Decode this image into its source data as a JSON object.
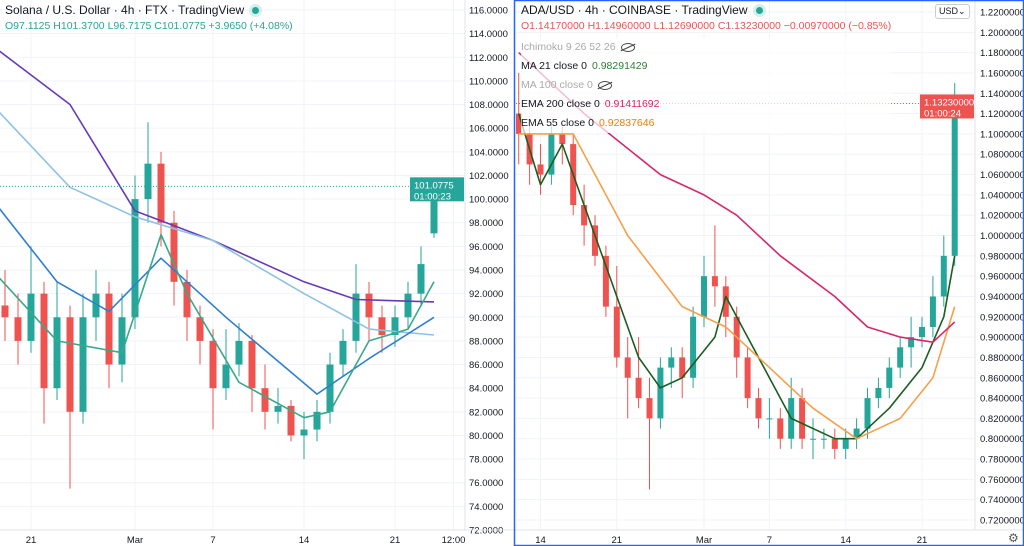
{
  "left": {
    "title": "Solana / U.S. Dollar · 4h · FTX · TradingView",
    "ohlc": {
      "o": "O97.1125",
      "h": "H101.3700",
      "l": "L96.7175",
      "c": "C101.0775",
      "chg": "+3.9650 (+4.08%)"
    },
    "last_price": "101.0775",
    "countdown": "01:00:23",
    "colors": {
      "up": "#26a69a",
      "down": "#ef5350"
    }
  },
  "right": {
    "title": "ADA/USD · 4h · COINBASE · TradingView",
    "ohlc": {
      "o": "O1.14170000",
      "h": "H1.14960000",
      "l": "L1.12690000",
      "c": "C1.13230000",
      "chg": "−0.00970000 (−0.85%)"
    },
    "indicators": [
      {
        "label": "Ichimoku 9 26 52 26",
        "value": "",
        "hidden": true,
        "color": "#999999"
      },
      {
        "label": "MA 21 close 0",
        "value": "0.98291429",
        "hidden": false,
        "color": "#2e7d32"
      },
      {
        "label": "MA 100 close 0",
        "value": "",
        "hidden": true,
        "color": "#999999"
      },
      {
        "label": "EMA 200 close 0",
        "value": "0.91411692",
        "hidden": false,
        "color": "#e91e63"
      },
      {
        "label": "EMA 55 close 0",
        "value": "0.92837646",
        "hidden": false,
        "color": "#f57c00"
      }
    ],
    "last_price": "1.13230000",
    "countdown": "01:00:24",
    "currency": "USD",
    "currency_icon": "chevron-down-icon"
  },
  "settings_icon": "gear-icon",
  "chart_data": [
    {
      "type": "candlestick",
      "title": "Solana / U.S. Dollar · 4h · FTX",
      "ylim": [
        72,
        116
      ],
      "yticks": [
        72,
        74,
        76,
        78,
        80,
        82,
        84,
        86,
        88,
        90,
        92,
        94,
        96,
        98,
        100,
        102,
        104,
        106,
        108,
        110,
        112,
        114,
        116
      ],
      "ytick_format": 4,
      "xticks": [
        {
          "date": "2022-02-21",
          "label": "21"
        },
        {
          "date": "2022-03-01",
          "label": "Mar"
        },
        {
          "date": "2022-03-07",
          "label": "7"
        },
        {
          "date": "2022-03-14",
          "label": "14"
        },
        {
          "date": "2022-03-21",
          "label": "21"
        },
        {
          "date": "2022-03-25.5",
          "label": "12:00"
        }
      ],
      "candles": [
        [
          "2022-02-19",
          91,
          94,
          88,
          90
        ],
        [
          "2022-02-20",
          90,
          92,
          86,
          88
        ],
        [
          "2022-02-21",
          88,
          96,
          87,
          92
        ],
        [
          "2022-02-22",
          92,
          93,
          81,
          84
        ],
        [
          "2022-02-23",
          84,
          93,
          83,
          90
        ],
        [
          "2022-02-24",
          90,
          91,
          75.5,
          82
        ],
        [
          "2022-02-25",
          82,
          92,
          81,
          90
        ],
        [
          "2022-02-26",
          90,
          94,
          88,
          92
        ],
        [
          "2022-02-27",
          92,
          93,
          84,
          86
        ],
        [
          "2022-02-28",
          86,
          92,
          84.5,
          90
        ],
        [
          "2022-03-01",
          90,
          102,
          89,
          100
        ],
        [
          "2022-03-02",
          100,
          106.5,
          98,
          103
        ],
        [
          "2022-03-03",
          103,
          104,
          96,
          98
        ],
        [
          "2022-03-04",
          98,
          99,
          91,
          93
        ],
        [
          "2022-03-05",
          93,
          94,
          88,
          90
        ],
        [
          "2022-03-06",
          90,
          91,
          86,
          88
        ],
        [
          "2022-03-07",
          88,
          89,
          80.5,
          84
        ],
        [
          "2022-03-08",
          84,
          89,
          83,
          86
        ],
        [
          "2022-03-09",
          86,
          89.5,
          85,
          88
        ],
        [
          "2022-03-10",
          88,
          88.5,
          82,
          84
        ],
        [
          "2022-03-11",
          84,
          86,
          80.5,
          82
        ],
        [
          "2022-03-12",
          82,
          84,
          81,
          82.5
        ],
        [
          "2022-03-13",
          82.5,
          83,
          79.5,
          80
        ],
        [
          "2022-03-14",
          80,
          82,
          78,
          80.5
        ],
        [
          "2022-03-15",
          80.5,
          83,
          79.5,
          82
        ],
        [
          "2022-03-16",
          82,
          87,
          81,
          86
        ],
        [
          "2022-03-17",
          86,
          89,
          85,
          88
        ],
        [
          "2022-03-18",
          88,
          94.5,
          87,
          92
        ],
        [
          "2022-03-19",
          92,
          93,
          88,
          90
        ],
        [
          "2022-03-20",
          90,
          91,
          87,
          88.5
        ],
        [
          "2022-03-21",
          88.5,
          91,
          87.5,
          90
        ],
        [
          "2022-03-22",
          90,
          93,
          89,
          92
        ],
        [
          "2022-03-23",
          92,
          96,
          91,
          94.5
        ],
        [
          "2022-03-24",
          97.1,
          101.37,
          96.72,
          101.08
        ]
      ],
      "series": [
        {
          "color": "#673ab7",
          "points": [
            [
              "2022-02-18",
              113
            ],
            [
              "2022-02-24",
              108
            ],
            [
              "2022-03-01",
              99
            ],
            [
              "2022-03-07",
              96.5
            ],
            [
              "2022-03-14",
              93
            ],
            [
              "2022-03-18",
              91.5
            ],
            [
              "2022-03-24",
              91.3
            ]
          ]
        },
        {
          "color": "#8fc1e3",
          "points": [
            [
              "2022-02-18",
              108
            ],
            [
              "2022-02-24",
              101
            ],
            [
              "2022-03-01",
              98.5
            ],
            [
              "2022-03-07",
              96.5
            ],
            [
              "2022-03-14",
              92
            ],
            [
              "2022-03-19",
              89
            ],
            [
              "2022-03-24",
              88.5
            ]
          ]
        },
        {
          "color": "#2f7fd0",
          "points": [
            [
              "2022-02-18",
              100
            ],
            [
              "2022-02-23",
              93
            ],
            [
              "2022-02-27",
              90.5
            ],
            [
              "2022-03-03",
              95
            ],
            [
              "2022-03-08",
              90
            ],
            [
              "2022-03-15",
              83.5
            ],
            [
              "2022-03-19",
              86.5
            ],
            [
              "2022-03-24",
              90
            ]
          ]
        },
        {
          "color": "#3aa88a",
          "points": [
            [
              "2022-02-18",
              94
            ],
            [
              "2022-02-23",
              88
            ],
            [
              "2022-02-28",
              87
            ],
            [
              "2022-03-03",
              97
            ],
            [
              "2022-03-05",
              92
            ],
            [
              "2022-03-09",
              84.5
            ],
            [
              "2022-03-14",
              81.5
            ],
            [
              "2022-03-16",
              82
            ],
            [
              "2022-03-19",
              88
            ],
            [
              "2022-03-22",
              89
            ],
            [
              "2022-03-24",
              93
            ]
          ]
        }
      ]
    },
    {
      "type": "candlestick",
      "title": "ADA/USD · 4h · COINBASE",
      "ylim": [
        0.72,
        1.22
      ],
      "yticks": [
        0.72,
        0.74,
        0.76,
        0.78,
        0.8,
        0.82,
        0.84,
        0.86,
        0.88,
        0.9,
        0.92,
        0.94,
        0.96,
        0.98,
        1.0,
        1.02,
        1.04,
        1.06,
        1.08,
        1.1,
        1.12,
        1.14,
        1.16,
        1.18,
        1.2,
        1.22
      ],
      "ytick_format": 8,
      "xticks": [
        {
          "date": "2022-02-14",
          "label": "14"
        },
        {
          "date": "2022-02-21",
          "label": "21"
        },
        {
          "date": "2022-03-01",
          "label": "Mar"
        },
        {
          "date": "2022-03-07",
          "label": "7"
        },
        {
          "date": "2022-03-14",
          "label": "14"
        },
        {
          "date": "2022-03-21",
          "label": "21"
        }
      ],
      "candles": [
        [
          "2022-02-12",
          1.12,
          1.16,
          1.07,
          1.1
        ],
        [
          "2022-02-13",
          1.1,
          1.11,
          1.05,
          1.07
        ],
        [
          "2022-02-14",
          1.07,
          1.09,
          1.04,
          1.06
        ],
        [
          "2022-02-15",
          1.06,
          1.11,
          1.05,
          1.1
        ],
        [
          "2022-02-16",
          1.1,
          1.11,
          1.07,
          1.09
        ],
        [
          "2022-02-17",
          1.09,
          1.1,
          1.02,
          1.03
        ],
        [
          "2022-02-18",
          1.03,
          1.05,
          0.99,
          1.01
        ],
        [
          "2022-02-19",
          1.01,
          1.02,
          0.97,
          0.98
        ],
        [
          "2022-02-20",
          0.98,
          0.99,
          0.92,
          0.93
        ],
        [
          "2022-02-21",
          0.93,
          0.97,
          0.87,
          0.88
        ],
        [
          "2022-02-22",
          0.88,
          0.9,
          0.82,
          0.86
        ],
        [
          "2022-02-23",
          0.86,
          0.9,
          0.83,
          0.84
        ],
        [
          "2022-02-24",
          0.84,
          0.86,
          0.75,
          0.82
        ],
        [
          "2022-02-25",
          0.82,
          0.88,
          0.81,
          0.87
        ],
        [
          "2022-02-26",
          0.87,
          0.89,
          0.85,
          0.88
        ],
        [
          "2022-02-27",
          0.88,
          0.89,
          0.84,
          0.86
        ],
        [
          "2022-02-28",
          0.86,
          0.93,
          0.85,
          0.92
        ],
        [
          "2022-03-01",
          0.92,
          0.98,
          0.91,
          0.96
        ],
        [
          "2022-03-02",
          0.96,
          1.01,
          0.93,
          0.95
        ],
        [
          "2022-03-03",
          0.95,
          0.96,
          0.9,
          0.92
        ],
        [
          "2022-03-04",
          0.92,
          0.93,
          0.86,
          0.88
        ],
        [
          "2022-03-05",
          0.88,
          0.89,
          0.83,
          0.84
        ],
        [
          "2022-03-06",
          0.84,
          0.85,
          0.81,
          0.82
        ],
        [
          "2022-03-07",
          0.82,
          0.84,
          0.8,
          0.82
        ],
        [
          "2022-03-08",
          0.82,
          0.83,
          0.79,
          0.8
        ],
        [
          "2022-03-09",
          0.8,
          0.86,
          0.79,
          0.84
        ],
        [
          "2022-03-10",
          0.84,
          0.85,
          0.79,
          0.8
        ],
        [
          "2022-03-11",
          0.8,
          0.82,
          0.78,
          0.8
        ],
        [
          "2022-03-12",
          0.8,
          0.81,
          0.79,
          0.8
        ],
        [
          "2022-03-13",
          0.8,
          0.81,
          0.78,
          0.79
        ],
        [
          "2022-03-14",
          0.79,
          0.81,
          0.78,
          0.8
        ],
        [
          "2022-03-15",
          0.8,
          0.82,
          0.79,
          0.81
        ],
        [
          "2022-03-16",
          0.81,
          0.85,
          0.8,
          0.84
        ],
        [
          "2022-03-17",
          0.84,
          0.86,
          0.83,
          0.85
        ],
        [
          "2022-03-18",
          0.85,
          0.88,
          0.84,
          0.87
        ],
        [
          "2022-03-19",
          0.87,
          0.9,
          0.86,
          0.89
        ],
        [
          "2022-03-20",
          0.89,
          0.92,
          0.87,
          0.9
        ],
        [
          "2022-03-21",
          0.9,
          0.92,
          0.89,
          0.91
        ],
        [
          "2022-03-22",
          0.91,
          0.96,
          0.9,
          0.94
        ],
        [
          "2022-03-23",
          0.94,
          1.0,
          0.93,
          0.98
        ],
        [
          "2022-03-24",
          0.98,
          1.15,
          0.97,
          1.13
        ]
      ],
      "series": [
        {
          "name": "MA 21 close 0",
          "color": "#1b5e20",
          "points": [
            [
              "2022-02-12",
              1.12
            ],
            [
              "2022-02-14",
              1.05
            ],
            [
              "2022-02-16",
              1.09
            ],
            [
              "2022-02-19",
              1.0
            ],
            [
              "2022-02-23",
              0.88
            ],
            [
              "2022-02-25",
              0.85
            ],
            [
              "2022-02-27",
              0.86
            ],
            [
              "2022-03-02",
              0.9
            ],
            [
              "2022-03-03",
              0.94
            ],
            [
              "2022-03-05",
              0.9
            ],
            [
              "2022-03-09",
              0.82
            ],
            [
              "2022-03-13",
              0.8
            ],
            [
              "2022-03-15",
              0.8
            ],
            [
              "2022-03-18",
              0.83
            ],
            [
              "2022-03-21",
              0.87
            ],
            [
              "2022-03-23",
              0.92
            ],
            [
              "2022-03-24",
              0.98
            ]
          ]
        },
        {
          "name": "EMA 55 close 0",
          "color": "#f5a04a",
          "points": [
            [
              "2022-02-12",
              1.1
            ],
            [
              "2022-02-17",
              1.1
            ],
            [
              "2022-02-22",
              1.0
            ],
            [
              "2022-02-27",
              0.93
            ],
            [
              "2022-03-03",
              0.91
            ],
            [
              "2022-03-06",
              0.88
            ],
            [
              "2022-03-11",
              0.83
            ],
            [
              "2022-03-15",
              0.8
            ],
            [
              "2022-03-19",
              0.82
            ],
            [
              "2022-03-22",
              0.86
            ],
            [
              "2022-03-24",
              0.93
            ]
          ]
        },
        {
          "name": "EMA 200 close 0",
          "color": "#d6286a",
          "points": [
            [
              "2022-02-12",
              1.18
            ],
            [
              "2022-02-18",
              1.12
            ],
            [
              "2022-02-25",
              1.06
            ],
            [
              "2022-03-01",
              1.04
            ],
            [
              "2022-03-04",
              1.02
            ],
            [
              "2022-03-08",
              0.98
            ],
            [
              "2022-03-13",
              0.94
            ],
            [
              "2022-03-16",
              0.91
            ],
            [
              "2022-03-19",
              0.9
            ],
            [
              "2022-03-22",
              0.895
            ],
            [
              "2022-03-24",
              0.915
            ]
          ]
        }
      ]
    }
  ]
}
